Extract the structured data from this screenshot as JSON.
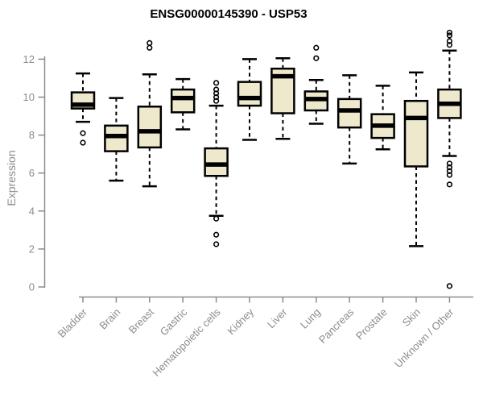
{
  "title": "ENSG00000145390 - USP53",
  "chart_data": {
    "type": "boxplot",
    "title": "ENSG00000145390 - USP53",
    "ylabel": "Expression",
    "xlabel": "",
    "ylim": [
      0,
      13.6
    ],
    "y_ticks": [
      0,
      2,
      4,
      6,
      8,
      10,
      12
    ],
    "grid": false,
    "legend": "none",
    "categories": [
      "Bladder",
      "Brain",
      "Breast",
      "Gastric",
      "Hematopoietic cells",
      "Kidney",
      "Liver",
      "Lung",
      "Pancreas",
      "Prostate",
      "Skin",
      "Unknown / Other"
    ],
    "boxes": [
      {
        "category": "Bladder",
        "whisker_low": 8.7,
        "q1": 9.4,
        "median": 9.6,
        "q3": 10.25,
        "whisker_high": 11.25,
        "outliers": [
          8.1,
          7.6
        ]
      },
      {
        "category": "Brain",
        "whisker_low": 5.6,
        "q1": 7.15,
        "median": 7.95,
        "q3": 8.5,
        "whisker_high": 9.95,
        "outliers": []
      },
      {
        "category": "Breast",
        "whisker_low": 5.3,
        "q1": 7.35,
        "median": 8.2,
        "q3": 9.5,
        "whisker_high": 11.2,
        "outliers": [
          12.85,
          12.6
        ]
      },
      {
        "category": "Gastric",
        "whisker_low": 8.3,
        "q1": 9.2,
        "median": 9.95,
        "q3": 10.4,
        "whisker_high": 10.95,
        "outliers": []
      },
      {
        "category": "Hematopoietic cells",
        "whisker_low": 3.75,
        "q1": 5.85,
        "median": 6.45,
        "q3": 7.3,
        "whisker_high": 9.55,
        "outliers": [
          10.75,
          10.4,
          10.2,
          10.0,
          9.8,
          3.6,
          2.75,
          2.25
        ]
      },
      {
        "category": "Kidney",
        "whisker_low": 7.75,
        "q1": 9.55,
        "median": 9.95,
        "q3": 10.8,
        "whisker_high": 12.0,
        "outliers": []
      },
      {
        "category": "Liver",
        "whisker_low": 7.8,
        "q1": 9.15,
        "median": 11.1,
        "q3": 11.5,
        "whisker_high": 12.05,
        "outliers": []
      },
      {
        "category": "Lung",
        "whisker_low": 8.6,
        "q1": 9.3,
        "median": 9.9,
        "q3": 10.3,
        "whisker_high": 10.9,
        "outliers": [
          12.6,
          12.05
        ]
      },
      {
        "category": "Pancreas",
        "whisker_low": 6.5,
        "q1": 8.4,
        "median": 9.3,
        "q3": 9.9,
        "whisker_high": 11.15,
        "outliers": []
      },
      {
        "category": "Prostate",
        "whisker_low": 7.25,
        "q1": 7.85,
        "median": 8.5,
        "q3": 9.1,
        "whisker_high": 10.6,
        "outliers": []
      },
      {
        "category": "Skin",
        "whisker_low": 2.15,
        "q1": 6.35,
        "median": 8.9,
        "q3": 9.8,
        "whisker_high": 11.3,
        "outliers": []
      },
      {
        "category": "Unknown / Other",
        "whisker_low": 6.9,
        "q1": 8.9,
        "median": 9.65,
        "q3": 10.4,
        "whisker_high": 12.45,
        "outliers": [
          13.4,
          13.25,
          12.95,
          12.75,
          6.5,
          6.3,
          6.1,
          5.9,
          5.4,
          0.05
        ]
      }
    ],
    "colors": {
      "box_fill": "#EEE8CD",
      "box_border": "#000000",
      "median": "#000000",
      "whisker": "#000000",
      "axis": "#8C8C8C",
      "tick_label": "#8C8C8C",
      "title": "#000000",
      "background": "#FFFFFF"
    }
  }
}
